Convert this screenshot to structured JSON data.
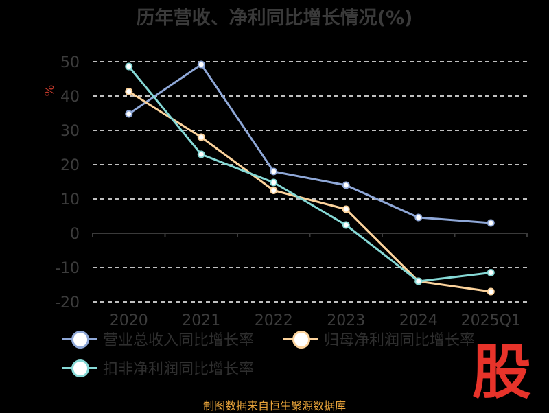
{
  "title": "历年营收、净利同比增长情况(%)",
  "footer": "制图数据来自恒生聚源数据库",
  "logo_text": "股",
  "chart_data": {
    "type": "line",
    "title": "历年营收、净利同比增长情况(%)",
    "ylabel": "%",
    "xlabel": "",
    "categories": [
      "2020",
      "2021",
      "2022",
      "2023",
      "2024",
      "2025Q1"
    ],
    "ylim": [
      -20,
      50
    ],
    "yticks": [
      50,
      40,
      30,
      20,
      10,
      0,
      -10,
      -20
    ],
    "grid": true,
    "legend_position": "bottom",
    "series": [
      {
        "name": "营业总收入同比增长率",
        "color": "#8fa8d8",
        "values": [
          34.8,
          49.2,
          18.0,
          14.0,
          4.6,
          3.0
        ]
      },
      {
        "name": "归母净利润同比增长率",
        "color": "#fcd39c",
        "values": [
          41.3,
          28.0,
          12.5,
          7.0,
          -14.0,
          -17.0
        ]
      },
      {
        "name": "扣非净利润同比增长率",
        "color": "#86d9d6",
        "values": [
          48.6,
          23.0,
          14.8,
          2.4,
          -14.0,
          -11.5
        ]
      }
    ]
  }
}
